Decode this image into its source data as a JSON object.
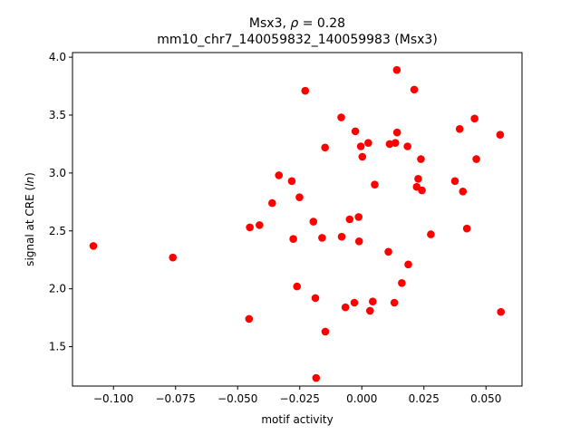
{
  "chart_data": {
    "type": "scatter",
    "title": "Msx3, ρ = 0.28",
    "title_prefix": "Msx3, ",
    "title_rho": "ρ",
    "title_suffix": " = 0.28",
    "subtitle": "mm10_chr7_140059832_140059983 (Msx3)",
    "xlabel": "motif activity",
    "ylabel_prefix": "signal at CRE (",
    "ylabel_italic": "ln",
    "ylabel_suffix": ")",
    "xlim": [
      -0.1165,
      0.0645
    ],
    "ylim": [
      1.16,
      4.04
    ],
    "xticks": [
      -0.1,
      -0.075,
      -0.05,
      -0.025,
      0.0,
      0.025,
      0.05
    ],
    "xtick_labels": [
      "−0.100",
      "−0.075",
      "−0.050",
      "−0.025",
      "0.000",
      "0.025",
      "0.050"
    ],
    "yticks": [
      1.5,
      2.0,
      2.5,
      3.0,
      3.5,
      4.0
    ],
    "ytick_labels": [
      "1.5",
      "2.0",
      "2.5",
      "3.0",
      "3.5",
      "4.0"
    ],
    "grid": false,
    "legend": "none",
    "marker_color": "#ff0000",
    "points": [
      [
        -0.1081,
        2.37
      ],
      [
        -0.0761,
        2.27
      ],
      [
        -0.0451,
        2.53
      ],
      [
        -0.0454,
        1.74
      ],
      [
        -0.0412,
        2.55
      ],
      [
        -0.0361,
        2.74
      ],
      [
        -0.0334,
        2.98
      ],
      [
        -0.0282,
        2.93
      ],
      [
        -0.0276,
        2.43
      ],
      [
        -0.0261,
        2.02
      ],
      [
        -0.0251,
        2.79
      ],
      [
        -0.0228,
        3.71
      ],
      [
        -0.0195,
        2.58
      ],
      [
        -0.0187,
        1.92
      ],
      [
        -0.0184,
        1.23
      ],
      [
        -0.016,
        2.44
      ],
      [
        -0.0148,
        3.22
      ],
      [
        -0.0147,
        1.63
      ],
      [
        -0.0083,
        3.48
      ],
      [
        -0.0081,
        2.45
      ],
      [
        -0.0066,
        1.84
      ],
      [
        -0.0049,
        2.6
      ],
      [
        -0.003,
        1.88
      ],
      [
        -0.0026,
        3.36
      ],
      [
        -0.0013,
        2.62
      ],
      [
        -0.0011,
        2.41
      ],
      [
        -0.0004,
        3.23
      ],
      [
        0.0002,
        3.14
      ],
      [
        0.0026,
        3.26
      ],
      [
        0.0033,
        1.81
      ],
      [
        0.0044,
        1.89
      ],
      [
        0.0052,
        2.9
      ],
      [
        0.0107,
        2.32
      ],
      [
        0.0112,
        3.25
      ],
      [
        0.0131,
        1.88
      ],
      [
        0.0135,
        3.26
      ],
      [
        0.0141,
        3.89
      ],
      [
        0.0142,
        3.35
      ],
      [
        0.0161,
        2.05
      ],
      [
        0.0184,
        3.23
      ],
      [
        0.0187,
        2.21
      ],
      [
        0.0211,
        3.72
      ],
      [
        0.0221,
        2.88
      ],
      [
        0.0227,
        2.95
      ],
      [
        0.0238,
        3.12
      ],
      [
        0.0242,
        2.85
      ],
      [
        0.0278,
        2.47
      ],
      [
        0.0375,
        2.93
      ],
      [
        0.0394,
        3.38
      ],
      [
        0.0407,
        2.84
      ],
      [
        0.0423,
        2.52
      ],
      [
        0.0454,
        3.47
      ],
      [
        0.0461,
        3.12
      ],
      [
        0.0557,
        3.33
      ],
      [
        0.056,
        1.8
      ]
    ]
  }
}
